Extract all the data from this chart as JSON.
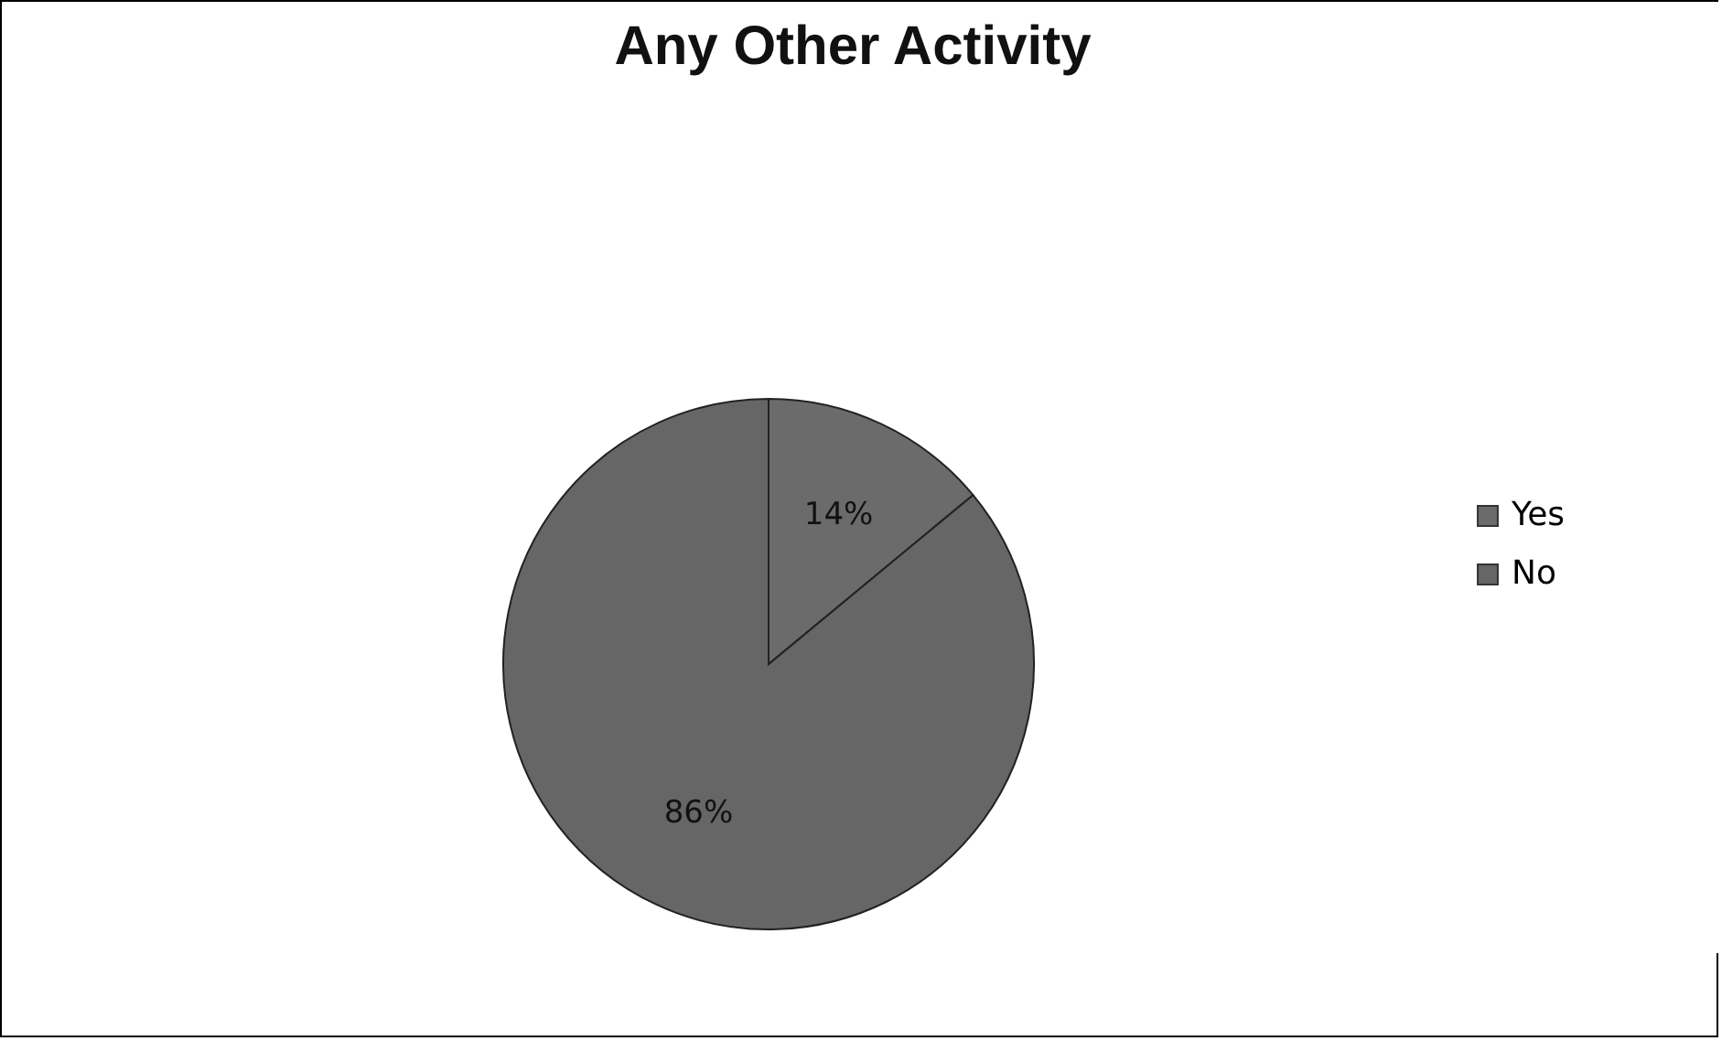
{
  "chart_data": {
    "type": "pie",
    "title": "Any Other Activity",
    "categories": [
      "Yes",
      "No"
    ],
    "values": [
      14,
      86
    ],
    "colors": [
      "#6b6b6b",
      "#666666"
    ],
    "value_labels": [
      "14%",
      "86%"
    ],
    "legend": "right"
  }
}
